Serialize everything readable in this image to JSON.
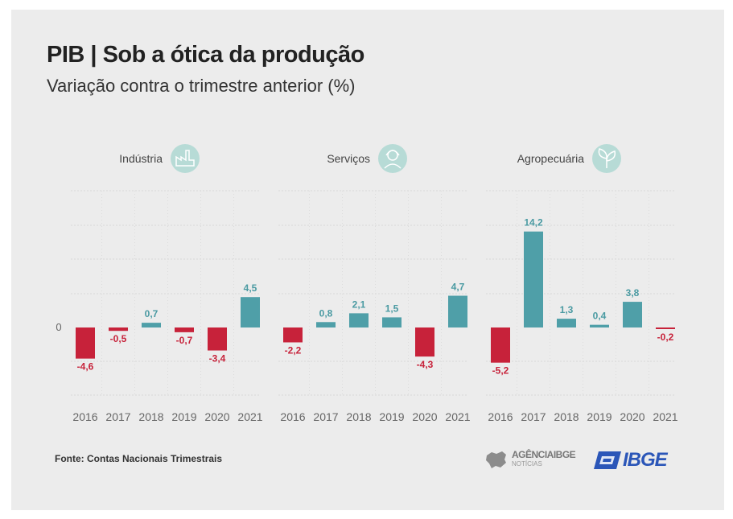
{
  "title": "PIB | Sob a ótica da produção",
  "subtitle": "Variação contra o trimestre anterior (%)",
  "source": "Fonte: Contas Nacionais Trimestrais",
  "logos": {
    "agencia_line1": "AGÊNCIAIBGE",
    "agencia_line2": "NOTÍCIAS",
    "ibge": "IBGE"
  },
  "colors": {
    "positive": "#4f9fa8",
    "negative": "#c7223a",
    "positive_label": "#4a9aa2",
    "negative_label": "#c7223a",
    "icon_circle": "#b7dbd6"
  },
  "chart_data": {
    "type": "bar",
    "zero_label": "0",
    "ylim": [
      -6,
      16
    ],
    "grid": true,
    "panels": [
      {
        "name": "Indústria",
        "icon": "factory-icon",
        "categories": [
          "2016",
          "2017",
          "2018",
          "2019",
          "2020",
          "2021"
        ],
        "values": [
          -4.6,
          -0.5,
          0.7,
          -0.7,
          -3.4,
          4.5
        ],
        "labels": [
          "-4,6",
          "-0,5",
          "0,7",
          "-0,7",
          "-3,4",
          "4,5"
        ]
      },
      {
        "name": "Serviços",
        "icon": "headset-person-icon",
        "categories": [
          "2016",
          "2017",
          "2018",
          "2019",
          "2020",
          "2021"
        ],
        "values": [
          -2.2,
          0.8,
          2.1,
          1.5,
          -4.3,
          4.7
        ],
        "labels": [
          "-2,2",
          "0,8",
          "2,1",
          "1,5",
          "-4,3",
          "4,7"
        ]
      },
      {
        "name": "Agropecuária",
        "icon": "plant-icon",
        "categories": [
          "2016",
          "2017",
          "2018",
          "2019",
          "2020",
          "2021"
        ],
        "values": [
          -5.2,
          14.2,
          1.3,
          0.4,
          3.8,
          -0.2
        ],
        "labels": [
          "-5,2",
          "14,2",
          "1,3",
          "0,4",
          "3,8",
          "-0,2"
        ]
      }
    ]
  }
}
